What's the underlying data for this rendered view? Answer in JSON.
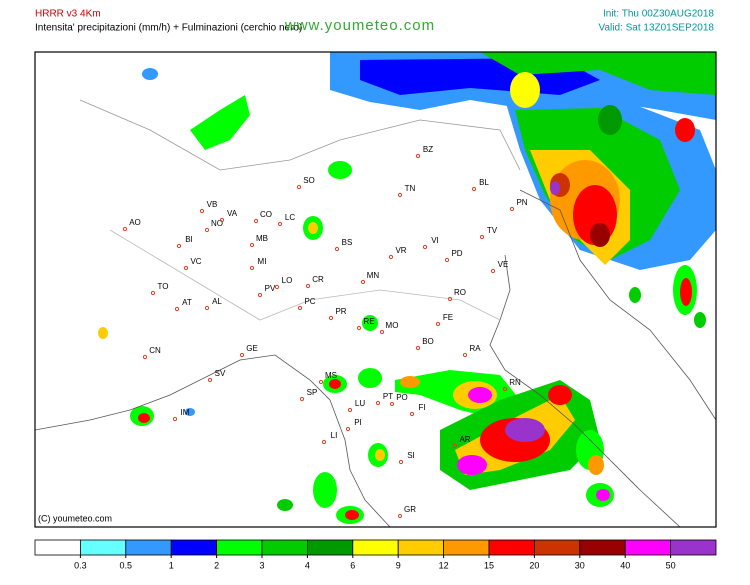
{
  "header": {
    "model": "HRRR v3 4Km",
    "subtitle": "Intensita' precipitazioni (mm/h) + Fulminazioni (cerchio nero)",
    "site": "www.youmeteo.com",
    "init": "Init: Thu 00Z30AUG2018",
    "valid": "Valid: Sat 13Z01SEP2018"
  },
  "map": {
    "labels": [
      "AO",
      "BI",
      "VC",
      "NO",
      "VB",
      "VA",
      "CO",
      "LC",
      "SO",
      "MB",
      "MI",
      "LO",
      "PV",
      "CR",
      "PC",
      "BS",
      "BZ",
      "TN",
      "BL",
      "PN",
      "TV",
      "VI",
      "VR",
      "PD",
      "VE",
      "MN",
      "RO",
      "FE",
      "PR",
      "RE",
      "MO",
      "BO",
      "RA",
      "RN",
      "TO",
      "AT",
      "AL",
      "CN",
      "GE",
      "SV",
      "IM",
      "SP",
      "MS",
      "LU",
      "PT",
      "PO",
      "FI",
      "PI",
      "LI",
      "AR",
      "SI",
      "GR"
    ],
    "copyright": "(C) youmeteo.com"
  },
  "legend": {
    "thresholds": [
      0.3,
      0.5,
      1,
      2,
      3,
      4,
      6,
      9,
      12,
      15,
      20,
      30,
      40,
      50
    ],
    "colors": [
      "#ffffff",
      "#66ffff",
      "#3399ff",
      "#0000ff",
      "#00ff00",
      "#00cc00",
      "#009900",
      "#ffff00",
      "#ffcc00",
      "#ff9900",
      "#ff0000",
      "#cc3300",
      "#990000",
      "#ff00ff",
      "#9933cc"
    ]
  }
}
